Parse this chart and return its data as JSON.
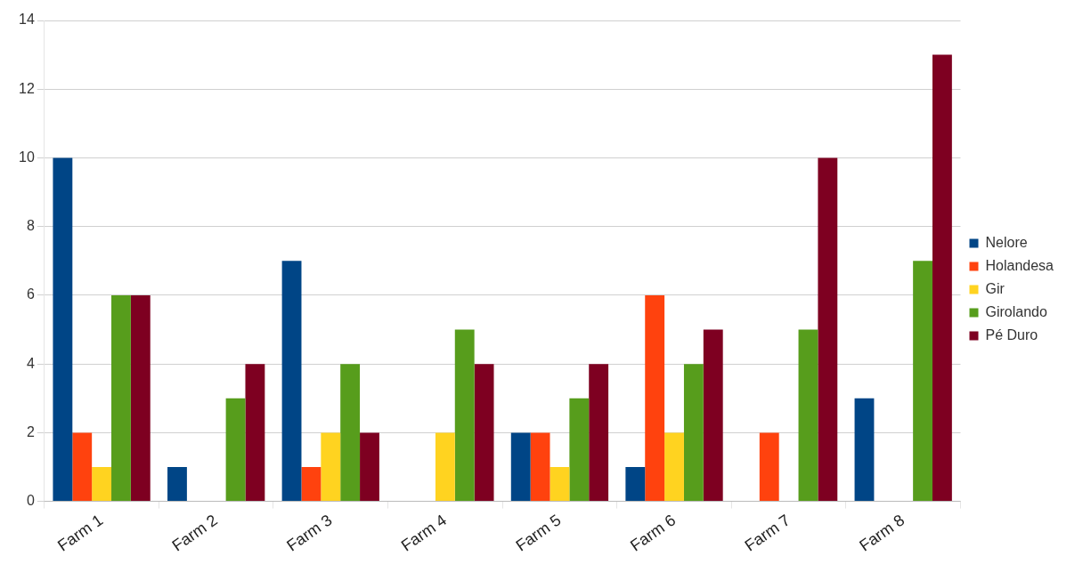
{
  "chart_data": {
    "type": "bar",
    "categories": [
      "Farm 1",
      "Farm 2",
      "Farm 3",
      "Farm 4",
      "Farm 5",
      "Farm 6",
      "Farm 7",
      "Farm 8"
    ],
    "series": [
      {
        "name": "Nelore",
        "color": "#004586",
        "values": [
          10,
          1,
          7,
          0,
          2,
          1,
          0,
          3
        ]
      },
      {
        "name": "Holandesa",
        "color": "#ff420e",
        "values": [
          2,
          0,
          1,
          0,
          2,
          6,
          2,
          0
        ]
      },
      {
        "name": "Gir",
        "color": "#ffd320",
        "values": [
          1,
          0,
          2,
          2,
          1,
          2,
          0,
          0
        ]
      },
      {
        "name": "Girolando",
        "color": "#579d1c",
        "values": [
          6,
          3,
          4,
          5,
          3,
          4,
          5,
          7
        ]
      },
      {
        "name": "Pé Duro",
        "color": "#7e0021",
        "values": [
          6,
          4,
          2,
          4,
          4,
          5,
          10,
          13
        ]
      }
    ],
    "ylim": [
      0,
      14
    ],
    "yticks": [
      0,
      2,
      4,
      6,
      8,
      10,
      12,
      14
    ],
    "grid": "y",
    "legend": "right"
  }
}
